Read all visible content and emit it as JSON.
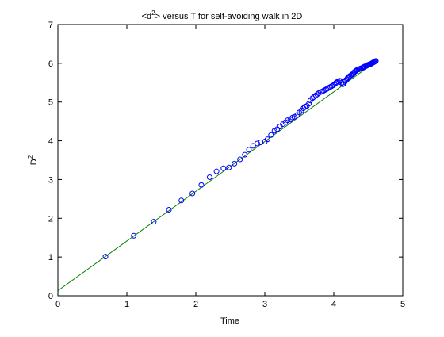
{
  "chart_data": {
    "type": "scatter",
    "title": {
      "main": "<d",
      "sup": "2",
      "rest": "> versus T for self-avoiding walk in 2D"
    },
    "xlabel": "Time",
    "ylabel": {
      "main": "D",
      "sup": "2"
    },
    "xlim": [
      0,
      5
    ],
    "ylim": [
      0,
      7
    ],
    "xticks": [
      0,
      1,
      2,
      3,
      4,
      5
    ],
    "yticks": [
      0,
      1,
      2,
      3,
      4,
      5,
      6,
      7
    ],
    "grid": false,
    "colors": {
      "markers": "#0000ff",
      "fit_line": "#008000",
      "axes": "#000000",
      "background": "#ffffff"
    },
    "series": [
      {
        "kind": "markers",
        "marker": "circle-open",
        "x": [
          0.69,
          1.1,
          1.39,
          1.61,
          1.79,
          1.95,
          2.08,
          2.2,
          2.3,
          2.4,
          2.48,
          2.56,
          2.64,
          2.71,
          2.77,
          2.83,
          2.89,
          2.94,
          3.0,
          3.04,
          3.09,
          3.14,
          3.18,
          3.22,
          3.26,
          3.3,
          3.33,
          3.37,
          3.4,
          3.43,
          3.47,
          3.5,
          3.53,
          3.56,
          3.58,
          3.61,
          3.64,
          3.66,
          3.69,
          3.71,
          3.74,
          3.76,
          3.78,
          3.81,
          3.83,
          3.85,
          3.87,
          3.89,
          3.91,
          3.93,
          3.95,
          3.97,
          3.99,
          4.01,
          4.03,
          4.04,
          4.06,
          4.08,
          4.09,
          4.11,
          4.13,
          4.14,
          4.16,
          4.17,
          4.19,
          4.2,
          4.22,
          4.23,
          4.25,
          4.26,
          4.28,
          4.29,
          4.3,
          4.32,
          4.33,
          4.34,
          4.36,
          4.37,
          4.38,
          4.39,
          4.41,
          4.42,
          4.43,
          4.44,
          4.45,
          4.47,
          4.48,
          4.49,
          4.5,
          4.51,
          4.52,
          4.53,
          4.54,
          4.55,
          4.56,
          4.57,
          4.58,
          4.59,
          4.6,
          4.61
        ],
        "y": [
          1.01,
          1.55,
          1.91,
          2.22,
          2.46,
          2.64,
          2.86,
          3.06,
          3.21,
          3.29,
          3.31,
          3.41,
          3.52,
          3.64,
          3.77,
          3.87,
          3.93,
          3.96,
          3.98,
          4.04,
          4.15,
          4.26,
          4.3,
          4.37,
          4.43,
          4.48,
          4.53,
          4.55,
          4.6,
          4.62,
          4.67,
          4.73,
          4.78,
          4.84,
          4.88,
          4.9,
          4.96,
          5.04,
          5.1,
          5.13,
          5.17,
          5.2,
          5.23,
          5.26,
          5.27,
          5.29,
          5.31,
          5.33,
          5.35,
          5.37,
          5.39,
          5.41,
          5.43,
          5.46,
          5.49,
          5.51,
          5.53,
          5.55,
          5.55,
          5.5,
          5.46,
          5.47,
          5.52,
          5.56,
          5.59,
          5.62,
          5.64,
          5.67,
          5.69,
          5.71,
          5.73,
          5.75,
          5.78,
          5.8,
          5.82,
          5.83,
          5.84,
          5.85,
          5.86,
          5.87,
          5.88,
          5.89,
          5.9,
          5.91,
          5.92,
          5.93,
          5.94,
          5.95,
          5.96,
          5.97,
          5.97,
          5.98,
          5.99,
          6.0,
          6.01,
          6.02,
          6.03,
          6.04,
          6.05,
          6.06
        ]
      },
      {
        "kind": "line",
        "x": [
          0,
          4.62
        ],
        "y": [
          0.13,
          6.06
        ]
      }
    ]
  }
}
